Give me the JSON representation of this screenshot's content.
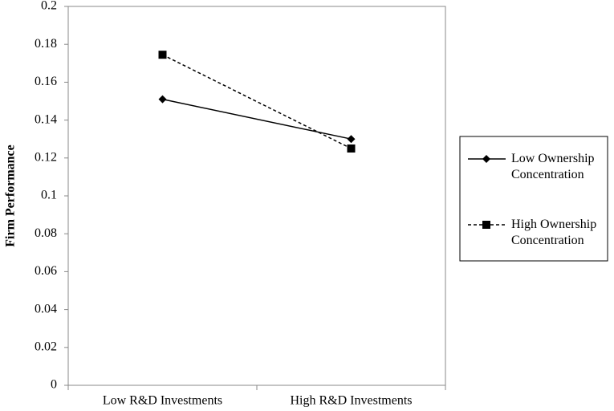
{
  "chart_data": {
    "type": "line",
    "y_label": "Firm Performance",
    "categories": [
      "Low R&D Investments",
      "High R&D Investments"
    ],
    "series": [
      {
        "name": "Low Ownership Concentration",
        "color": "#000000",
        "marker": "diamond",
        "dashed": false,
        "values": [
          0.151,
          0.13
        ]
      },
      {
        "name": "High Ownership Concentration",
        "color": "#000000",
        "marker": "square",
        "dashed": true,
        "values": [
          0.1745,
          0.125
        ]
      }
    ],
    "ylim": [
      0,
      0.2
    ],
    "yticks": [
      0,
      0.02,
      0.04,
      0.06,
      0.08,
      0.1,
      0.12,
      0.14,
      0.16,
      0.18,
      0.2
    ],
    "grid": false,
    "legend": "right"
  }
}
